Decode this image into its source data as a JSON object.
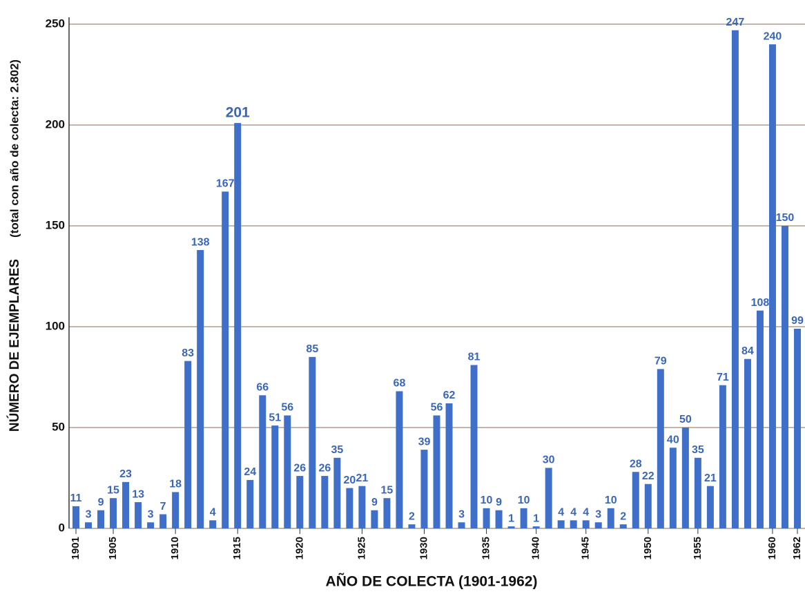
{
  "chart_data": {
    "type": "bar",
    "y_title": "NÚMERO DE EJEMPLARES",
    "y_subtitle": "(total con año de colecta: 2.802)",
    "x_title": "AÑO DE COLECTA (1901-1962)",
    "categories": [
      "1901",
      null,
      null,
      "1905",
      null,
      null,
      null,
      null,
      "1910",
      null,
      null,
      null,
      null,
      "1915",
      null,
      null,
      null,
      null,
      "1920",
      null,
      null,
      null,
      null,
      "1925",
      null,
      null,
      null,
      null,
      "1930",
      null,
      null,
      null,
      null,
      "1935",
      null,
      null,
      null,
      "1940",
      null,
      null,
      null,
      "1945",
      null,
      null,
      null,
      null,
      "1950",
      null,
      null,
      null,
      "1955",
      null,
      null,
      null,
      null,
      null,
      "1960",
      null,
      "1962"
    ],
    "values": [
      11,
      3,
      9,
      15,
      23,
      13,
      3,
      7,
      18,
      83,
      138,
      4,
      167,
      201,
      24,
      66,
      51,
      56,
      26,
      85,
      26,
      35,
      20,
      21,
      9,
      15,
      68,
      2,
      39,
      56,
      62,
      3,
      81,
      10,
      9,
      1,
      10,
      1,
      30,
      4,
      4,
      4,
      3,
      10,
      2,
      28,
      22,
      79,
      40,
      50,
      35,
      21,
      71,
      247,
      84,
      108,
      240,
      150,
      99
    ],
    "color": "#3f6fc8",
    "label_color": "#3a66b8",
    "ylim": [
      0,
      250
    ],
    "yticks": [
      0,
      50,
      100,
      150,
      200,
      250
    ],
    "grid": true
  }
}
